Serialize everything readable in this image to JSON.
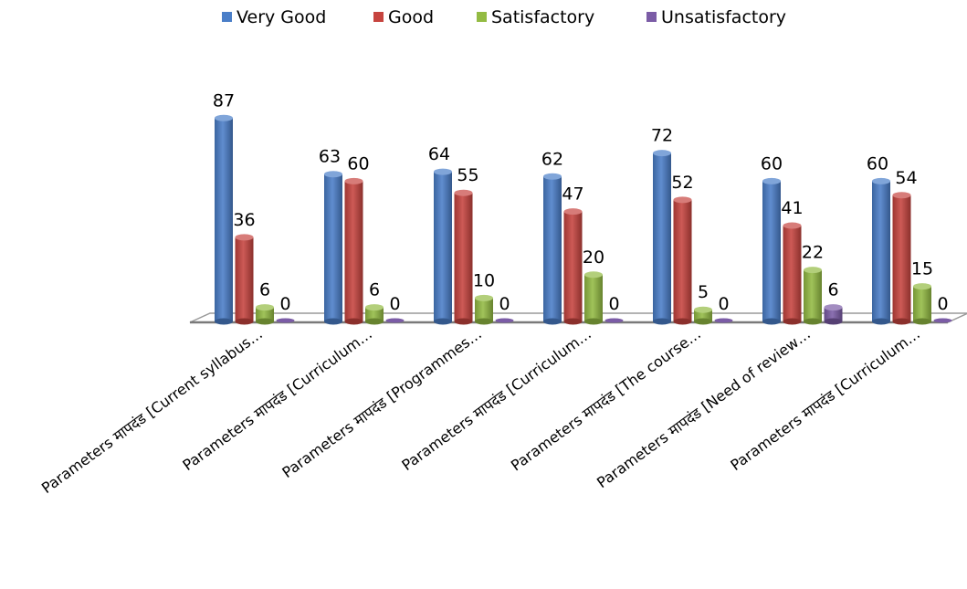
{
  "chart_data": {
    "type": "bar",
    "title": "",
    "xlabel": "",
    "ylabel": "",
    "ylim": [
      0,
      100
    ],
    "grid": false,
    "legend_position": "top",
    "categories": [
      "Parameters मापदंड [Current syllabus…",
      "Parameters मापदंड [Curriculum…",
      "Parameters मापदंड [Programmes…",
      "Parameters मापदंड [Curriculum…",
      "Parameters मापदंड [The course…",
      "Parameters मापदंड [Need of review…",
      "Parameters मापदंड [Curriculum…"
    ],
    "series": [
      {
        "name": "Very Good",
        "color": "#4a7ec8",
        "values": [
          87,
          63,
          64,
          62,
          72,
          60,
          60
        ]
      },
      {
        "name": "Good",
        "color": "#c6443f",
        "values": [
          36,
          60,
          55,
          47,
          52,
          41,
          54
        ]
      },
      {
        "name": "Satisfactory",
        "color": "#93bb43",
        "values": [
          6,
          6,
          10,
          20,
          5,
          22,
          15
        ]
      },
      {
        "name": "Unsatisfactory",
        "color": "#7b5ca6",
        "values": [
          0,
          0,
          0,
          0,
          0,
          6,
          0
        ]
      }
    ]
  }
}
